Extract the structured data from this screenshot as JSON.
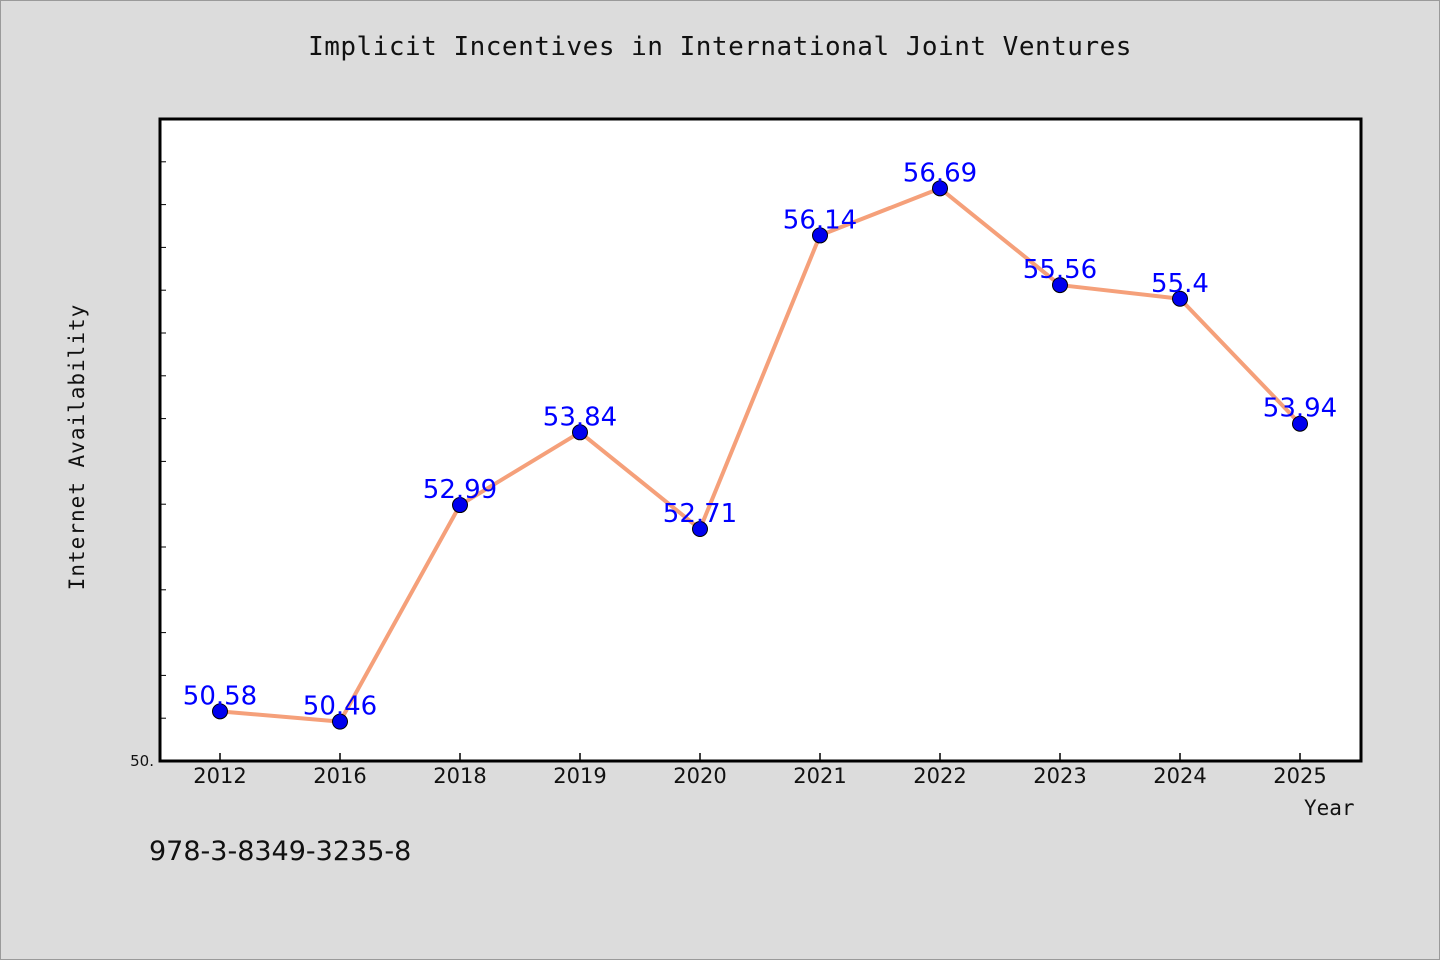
{
  "chart_data": {
    "type": "line",
    "title": "Implicit Incentives in International Joint Ventures",
    "xlabel": "Year",
    "ylabel": "Internet Availability",
    "categories": [
      "2012",
      "2016",
      "2018",
      "2019",
      "2020",
      "2021",
      "2022",
      "2023",
      "2024",
      "2025"
    ],
    "series": [
      {
        "values": [
          50.58,
          50.46,
          52.99,
          53.84,
          52.71,
          56.14,
          56.69,
          55.56,
          55.4,
          53.94
        ],
        "labels": [
          "50.58",
          "50.46",
          "52.99",
          "53.84",
          "52.71",
          "56.14",
          "56.69",
          "55.56",
          "55.4",
          "53.94"
        ],
        "line_color": "#f5a07a",
        "marker_color": "#0000ee"
      }
    ],
    "ylim": [
      50.0,
      57.5
    ],
    "y_tick_label": "50.",
    "grid": false,
    "legend": "none"
  },
  "footer": {
    "isbn": "978-3-8349-3235-8"
  },
  "colors": {
    "background": "#dcdcdc",
    "plot_area": "#ffffff",
    "line": "#f5a07a",
    "marker": "#0000ee",
    "data_label": "#0000ff"
  }
}
